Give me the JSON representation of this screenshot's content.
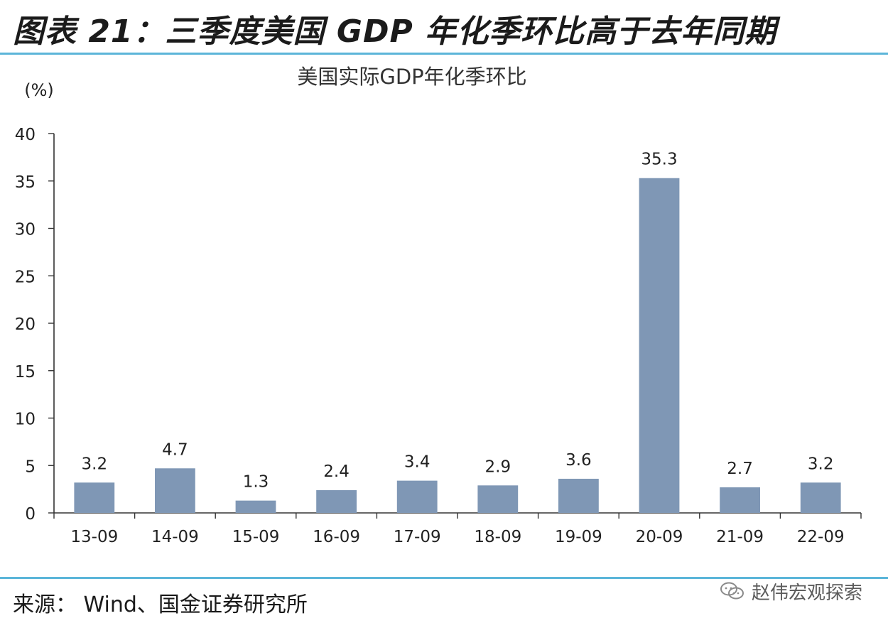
{
  "page": {
    "title": "图表 21：三季度美国 GDP 年化季环比高于去年同期",
    "source_text": "来源： Wind、国金证券研究所",
    "watermark_text": "赵伟宏观探索",
    "watermark_icon": "wechat-icon",
    "rule_color": "#5bb5d9"
  },
  "chart_data": {
    "type": "bar",
    "title": "美国实际GDP年化季环比",
    "ylabel": "(%)",
    "xlabel": "",
    "categories": [
      "13-09",
      "14-09",
      "15-09",
      "16-09",
      "17-09",
      "18-09",
      "19-09",
      "20-09",
      "21-09",
      "22-09"
    ],
    "values": [
      3.2,
      4.7,
      1.3,
      2.4,
      3.4,
      2.9,
      3.6,
      35.3,
      2.7,
      3.2
    ],
    "value_labels": [
      "3.2",
      "4.7",
      "1.3",
      "2.4",
      "3.4",
      "2.9",
      "3.6",
      "35.3",
      "2.7",
      "3.2"
    ],
    "ylim": [
      0,
      40
    ],
    "yticks": [
      0,
      5,
      10,
      15,
      20,
      25,
      30,
      35,
      40
    ],
    "grid": false,
    "legend": "none",
    "bar_color": "#7f97b5",
    "axis_color": "#333333"
  }
}
